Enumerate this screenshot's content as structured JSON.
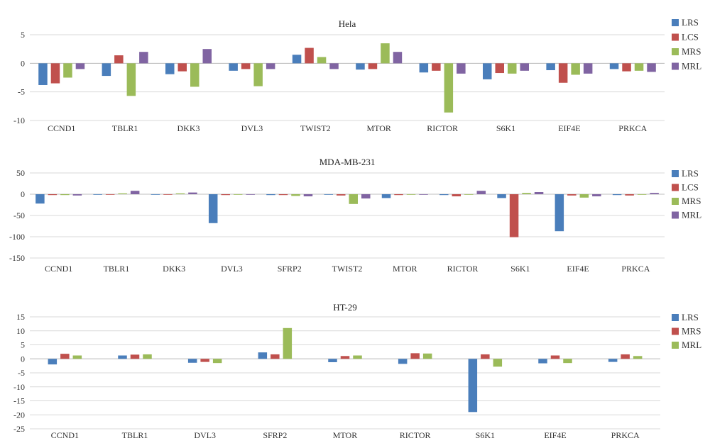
{
  "colors": {
    "LRS": "#4a7ebb",
    "LCS": "#c0504d",
    "MRS": "#9bbb59",
    "MRL": "#8064a2",
    "grid": "#d9d9d9"
  },
  "chart_data": [
    {
      "type": "bar",
      "title": "Hela",
      "ylim": [
        -10,
        5
      ],
      "yticks": [
        5,
        0,
        -5,
        -10
      ],
      "grid": true,
      "legend_position": "right",
      "categories": [
        "CCND1",
        "TBLR1",
        "DKK3",
        "DVL3",
        "TWIST2",
        "MTOR",
        "RICTOR",
        "S6K1",
        "EIF4E",
        "PRKCA"
      ],
      "series": [
        {
          "name": "LRS",
          "color_key": "LRS",
          "values": [
            -3.8,
            -2.2,
            -1.9,
            -1.3,
            1.5,
            -1.1,
            -1.6,
            -2.8,
            -1.2,
            -1.0
          ]
        },
        {
          "name": "LCS",
          "color_key": "LCS",
          "values": [
            -3.5,
            1.4,
            -1.4,
            -1.0,
            2.7,
            -1.0,
            -1.3,
            -1.7,
            -3.4,
            -1.4
          ]
        },
        {
          "name": "MRS",
          "color_key": "MRS",
          "values": [
            -2.5,
            -5.7,
            -4.1,
            -4.0,
            1.1,
            3.5,
            -8.6,
            -1.8,
            -2.0,
            -1.3
          ]
        },
        {
          "name": "MRL",
          "color_key": "MRL",
          "values": [
            -1.0,
            2.0,
            2.5,
            -1.0,
            -1.0,
            2.0,
            -1.8,
            -1.3,
            -1.8,
            -1.5
          ]
        }
      ]
    },
    {
      "type": "bar",
      "title": "MDA-MB-231",
      "ylim": [
        -150,
        50
      ],
      "yticks": [
        50,
        0,
        -50,
        -100,
        -150
      ],
      "grid": true,
      "legend_position": "right",
      "categories": [
        "CCND1",
        "TBLR1",
        "DKK3",
        "DVL3",
        "SFRP2",
        "TWIST2",
        "MTOR",
        "RICTOR",
        "S6K1",
        "EIF4E",
        "PRKCA"
      ],
      "series": [
        {
          "name": "LRS",
          "color_key": "LRS",
          "values": [
            -22,
            -1,
            -1,
            -68,
            -2,
            -1,
            -9,
            -2,
            -9,
            -87,
            -2
          ]
        },
        {
          "name": "LCS",
          "color_key": "LCS",
          "values": [
            -2,
            -1,
            -1,
            -2,
            -2,
            -3,
            -2,
            -5,
            -101,
            -3,
            -3
          ]
        },
        {
          "name": "MRS",
          "color_key": "MRS",
          "values": [
            -2,
            2,
            2,
            -1,
            -4,
            -23,
            -1,
            -1,
            3,
            -8,
            -1
          ]
        },
        {
          "name": "MRL",
          "color_key": "MRL",
          "values": [
            -3,
            8,
            4,
            -1,
            -5,
            -10,
            -1,
            8,
            5,
            -5,
            3
          ]
        }
      ]
    },
    {
      "type": "bar",
      "title": "HT-29",
      "ylim": [
        -25,
        15
      ],
      "yticks": [
        15,
        10,
        5,
        0,
        -5,
        -10,
        -15,
        -20,
        -25
      ],
      "grid": true,
      "legend_position": "right",
      "categories": [
        "CCND1",
        "TBLR1",
        "DVL3",
        "SFRP2",
        "MTOR",
        "RICTOR",
        "S6K1",
        "EIF4E",
        "PRKCA"
      ],
      "series": [
        {
          "name": "LRS",
          "color_key": "LRS",
          "values": [
            -2.0,
            1.2,
            -1.4,
            2.3,
            -1.2,
            -1.8,
            -19.0,
            -1.6,
            -1.1
          ]
        },
        {
          "name": "MRS",
          "color_key": "LCS",
          "values": [
            1.8,
            1.5,
            -1.1,
            1.6,
            1.0,
            2.0,
            1.6,
            1.2,
            1.6
          ]
        },
        {
          "name": "MRL",
          "color_key": "MRS",
          "values": [
            1.2,
            1.6,
            -1.5,
            11.0,
            1.2,
            1.9,
            -2.8,
            -1.5,
            1.0
          ]
        }
      ]
    }
  ]
}
